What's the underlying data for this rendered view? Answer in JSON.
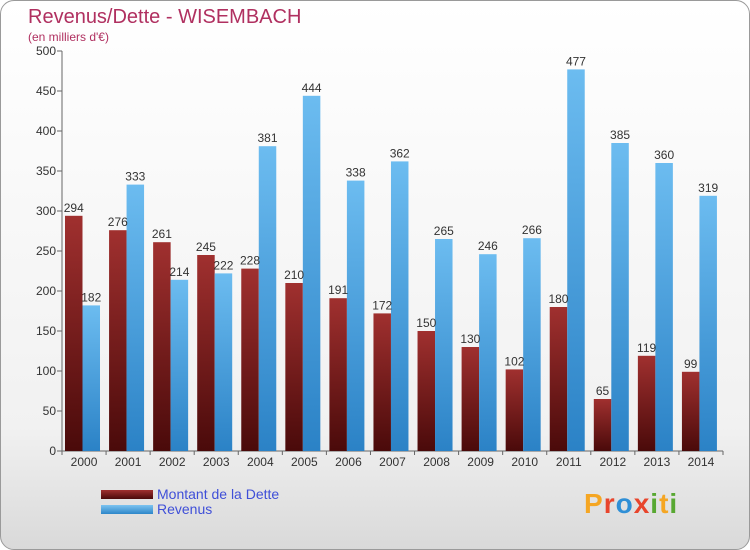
{
  "header": {
    "title": "Revenus/Dette - WISEMBACH",
    "subtitle": "(en milliers d'€)"
  },
  "legend": {
    "items": [
      {
        "label": "Montant de la Dette"
      },
      {
        "label": "Revenus"
      }
    ]
  },
  "logo": {
    "letters": [
      "P",
      "r",
      "o",
      "x",
      "i",
      "t",
      "i"
    ],
    "colors": [
      "#f5a623",
      "#e8452c",
      "#2f8fd6",
      "#e8452c",
      "#58a832",
      "#f5a623",
      "#58a832"
    ]
  },
  "colors": {
    "dette": "#7a1c1c",
    "revenus": "#4aa3e0",
    "title": "#b03060",
    "legend_text": "#3f4fd8"
  },
  "chart_data": {
    "type": "bar",
    "title": "Revenus/Dette - WISEMBACH",
    "subtitle": "(en milliers d'€)",
    "categories": [
      "2000",
      "2001",
      "2002",
      "2003",
      "2004",
      "2005",
      "2006",
      "2007",
      "2008",
      "2009",
      "2010",
      "2011",
      "2012",
      "2013",
      "2014"
    ],
    "series": [
      {
        "name": "Montant de la Dette",
        "values": [
          294,
          276,
          261,
          245,
          228,
          210,
          191,
          172,
          150,
          130,
          102,
          180,
          65,
          119,
          99
        ]
      },
      {
        "name": "Revenus",
        "values": [
          182,
          333,
          214,
          222,
          381,
          444,
          338,
          362,
          265,
          246,
          266,
          477,
          385,
          360,
          319
        ]
      }
    ],
    "ylim": [
      0,
      500
    ],
    "yticks": [
      0,
      50,
      100,
      150,
      200,
      250,
      300,
      350,
      400,
      450,
      500
    ],
    "grid": false,
    "legend_position": "bottom-left"
  }
}
